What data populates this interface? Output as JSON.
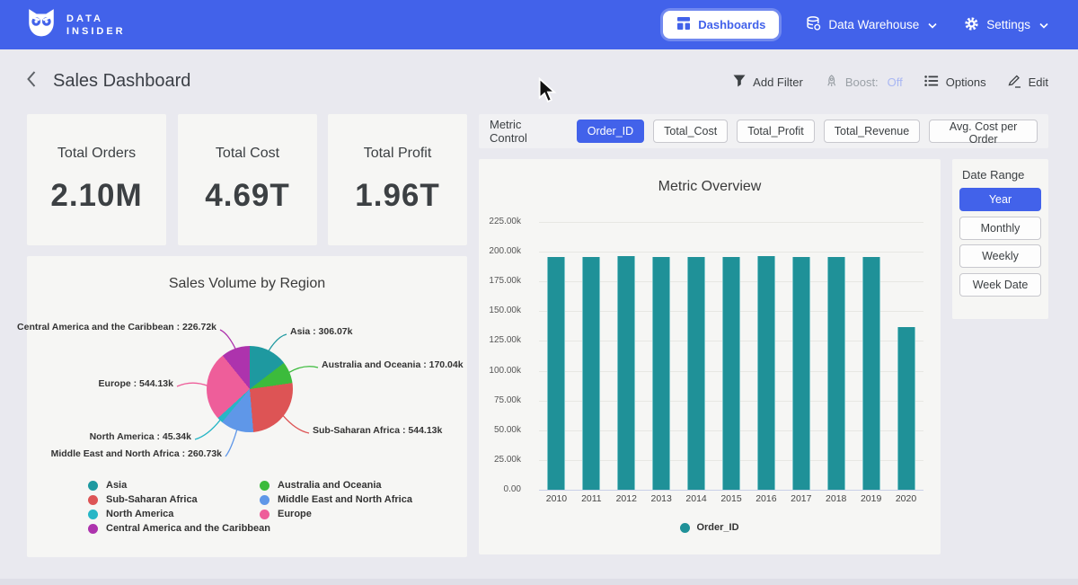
{
  "brand": {
    "line1": "DATA",
    "line2": "INSIDER"
  },
  "nav": {
    "dashboards": "Dashboards",
    "data_warehouse": "Data Warehouse",
    "settings": "Settings"
  },
  "toolbar": {
    "title": "Sales Dashboard",
    "add_filter": "Add Filter",
    "boost_label": "Boost:",
    "boost_value": "Off",
    "options": "Options",
    "edit": "Edit"
  },
  "kpis": [
    {
      "label": "Total Orders",
      "value": "2.10M"
    },
    {
      "label": "Total Cost",
      "value": "4.69T"
    },
    {
      "label": "Total Profit",
      "value": "1.96T"
    }
  ],
  "metric_control": {
    "label": "Metric Control",
    "buttons": [
      {
        "label": "Order_ID",
        "active": true
      },
      {
        "label": "Total_Cost",
        "active": false
      },
      {
        "label": "Total_Profit",
        "active": false
      },
      {
        "label": "Total_Revenue",
        "active": false
      },
      {
        "label": "Avg. Cost per Order",
        "active": false
      }
    ]
  },
  "date_range": {
    "label": "Date Range",
    "options": [
      {
        "label": "Year",
        "active": true
      },
      {
        "label": "Monthly",
        "active": false
      },
      {
        "label": "Weekly",
        "active": false
      },
      {
        "label": "Week Date",
        "active": false
      }
    ]
  },
  "colors": {
    "accent_blue": "#4262ea",
    "bar_teal": "#1f9198",
    "boost_off": "#a9b7f3"
  },
  "chart_data": [
    {
      "type": "pie",
      "title": "Sales Volume by Region",
      "value_unit": "k",
      "slices": [
        {
          "label": "Asia",
          "value": 306.07,
          "color": "#1e99a0",
          "text": "Asia : 306.07k"
        },
        {
          "label": "Australia and Oceania",
          "value": 170.04,
          "color": "#3cbb3c",
          "text": "Australia and Oceania : 170.04k"
        },
        {
          "label": "Sub-Saharan Africa",
          "value": 544.13,
          "color": "#dd5455",
          "text": "Sub-Saharan Africa : 544.13k"
        },
        {
          "label": "Middle East and North Africa",
          "value": 260.73,
          "color": "#5f97e8",
          "text": "Middle East and North Africa : 260.73k"
        },
        {
          "label": "North America",
          "value": 45.34,
          "color": "#27b6c6",
          "text": "North America : 45.34k"
        },
        {
          "label": "Europe",
          "value": 544.13,
          "color": "#ee5e9a",
          "text": "Europe : 544.13k"
        },
        {
          "label": "Central America and the Caribbean",
          "value": 226.72,
          "color": "#ad33ad",
          "text": "Central America and the Caribbean : 226.72k"
        }
      ],
      "legend_columns": [
        [
          0,
          2,
          4,
          6
        ],
        [
          1,
          3,
          5
        ]
      ],
      "legend_position": "bottom"
    },
    {
      "type": "bar",
      "title": "Metric Overview",
      "categories": [
        "2010",
        "2011",
        "2012",
        "2013",
        "2014",
        "2015",
        "2016",
        "2017",
        "2018",
        "2019",
        "2020"
      ],
      "series": [
        {
          "name": "Order_ID",
          "color": "#1f9198",
          "values": [
            195.6,
            195.4,
            196.5,
            195.3,
            195.5,
            195.4,
            196.3,
            195.8,
            195.6,
            195.7,
            136.5
          ]
        }
      ],
      "value_unit": "k",
      "ylim": [
        0,
        225
      ],
      "y_ticks": [
        "225.00k",
        "200.00k",
        "175.00k",
        "150.00k",
        "125.00k",
        "100.00k",
        "75.00k",
        "50.00k",
        "25.00k",
        "0.00"
      ],
      "grid": true,
      "legend_position": "bottom"
    }
  ]
}
